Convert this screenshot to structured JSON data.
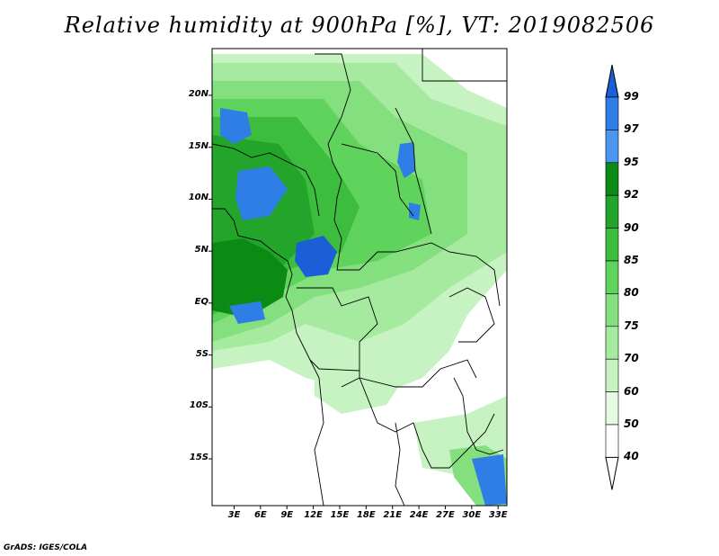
{
  "title": "Relative humidity at 900hPa [%], VT: 2019082506",
  "credit": "GrADS: IGES/COLA",
  "map": {
    "lat_range": [
      -19.5,
      24.5
    ],
    "lon_range": [
      0.5,
      34.0
    ],
    "lat_labels": [
      "20N",
      "15N",
      "10N",
      "5N",
      "EQ",
      "5S",
      "10S",
      "15S"
    ],
    "lat_values": [
      20,
      15,
      10,
      5,
      0,
      -5,
      -10,
      -15
    ],
    "lon_labels": [
      "3E",
      "6E",
      "9E",
      "12E",
      "15E",
      "18E",
      "21E",
      "24E",
      "27E",
      "30E",
      "33E"
    ],
    "lon_values": [
      3,
      6,
      9,
      12,
      15,
      18,
      21,
      24,
      27,
      30,
      33
    ]
  },
  "colorbar": {
    "levels": [
      "99",
      "97",
      "95",
      "92",
      "90",
      "85",
      "80",
      "75",
      "70",
      "60",
      "50",
      "40"
    ],
    "colors": {
      "99": "#1a5fd8",
      "97": "#2f7ee6",
      "95": "#4b97ef",
      "92": "#0b8a14",
      "90": "#22a52a",
      "85": "#3cbd3e",
      "80": "#5fd35c",
      "75": "#84e07e",
      "70": "#a6eaa0",
      "60": "#c7f3c2",
      "50": "#e6fae3",
      "40": "#ffffff"
    }
  }
}
